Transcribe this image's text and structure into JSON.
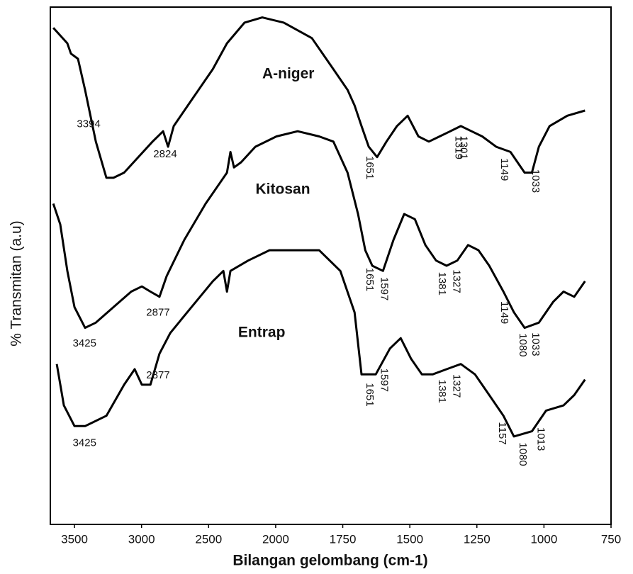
{
  "chart_data": {
    "type": "line",
    "xlabel": "Bilangan gelombang (cm-1)",
    "ylabel": "% Transmitan (a.u)",
    "xlim": [
      3680,
      750
    ],
    "xticks": [
      3500,
      3000,
      2500,
      2000,
      1750,
      1500,
      1250,
      1000,
      750
    ],
    "ylim": [
      0,
      100
    ],
    "series": [
      {
        "name": "A-niger",
        "color": "#000000",
        "x": [
          3658,
          3553,
          3526,
          3474,
          3421,
          3341,
          3262,
          3209,
          3130,
          3024,
          2918,
          2839,
          2802,
          2760,
          2628,
          2469,
          2363,
          2232,
          2100,
          1970,
          1865,
          1785,
          1732,
          1706,
          1680,
          1653,
          1622,
          1587,
          1548,
          1508,
          1468,
          1429,
          1389,
          1349,
          1310,
          1270,
          1230,
          1178,
          1125,
          1072,
          1045,
          1019,
          979,
          913,
          847
        ],
        "values": [
          96,
          93,
          91,
          90,
          84,
          74,
          67,
          67,
          68,
          71,
          74,
          76,
          73,
          77,
          82,
          88,
          93,
          97,
          98,
          97,
          94,
          88,
          84,
          81,
          77,
          73,
          71,
          74,
          77,
          79,
          75,
          74,
          75,
          76,
          77,
          76,
          75,
          73,
          72,
          68,
          68,
          73,
          77,
          79,
          80
        ],
        "peak_labels": [
          3394,
          2824,
          1651,
          1301,
          1319,
          1149,
          1033
        ]
      },
      {
        "name": "Kitosan",
        "color": "#000000",
        "x": [
          3658,
          3606,
          3553,
          3500,
          3421,
          3341,
          3209,
          3077,
          2998,
          2934,
          2866,
          2813,
          2681,
          2522,
          2416,
          2363,
          2337,
          2311,
          2258,
          2152,
          1997,
          1918,
          1838,
          1785,
          1732,
          1693,
          1666,
          1640,
          1600,
          1561,
          1521,
          1481,
          1442,
          1402,
          1363,
          1323,
          1283,
          1244,
          1204,
          1151,
          1112,
          1072,
          1019,
          966,
          927,
          887,
          847
        ],
        "values": [
          62,
          58,
          49,
          42,
          38,
          39,
          42,
          45,
          46,
          45,
          44,
          48,
          55,
          62,
          66,
          68,
          72,
          69,
          70,
          73,
          75,
          76,
          75,
          74,
          68,
          60,
          53,
          50,
          49,
          55,
          60,
          59,
          54,
          51,
          50,
          51,
          54,
          53,
          50,
          45,
          41,
          38,
          39,
          43,
          45,
          44,
          47
        ],
        "peak_labels": [
          3425,
          2877,
          1651,
          1597,
          1381,
          1327,
          1149,
          1080,
          1033
        ]
      },
      {
        "name": "Entrap",
        "color": "#000000",
        "x": [
          3632,
          3579,
          3500,
          3421,
          3262,
          3130,
          3051,
          2998,
          2934,
          2866,
          2786,
          2628,
          2469,
          2390,
          2363,
          2337,
          2205,
          2046,
          1918,
          1838,
          1759,
          1706,
          1680,
          1627,
          1574,
          1534,
          1495,
          1455,
          1415,
          1363,
          1310,
          1257,
          1204,
          1151,
          1112,
          1045,
          992,
          927,
          887,
          847
        ],
        "values": [
          31,
          23,
          19,
          19,
          21,
          27,
          30,
          27,
          27,
          33,
          37,
          42,
          47,
          49,
          45,
          49,
          51,
          53,
          53,
          53,
          49,
          41,
          29,
          29,
          34,
          36,
          32,
          29,
          29,
          30,
          31,
          29,
          25,
          21,
          17,
          18,
          22,
          23,
          25,
          28
        ],
        "peak_labels": [
          3425,
          2877,
          1651,
          1597,
          1381,
          1327,
          1157,
          1080,
          1013
        ]
      }
    ]
  }
}
